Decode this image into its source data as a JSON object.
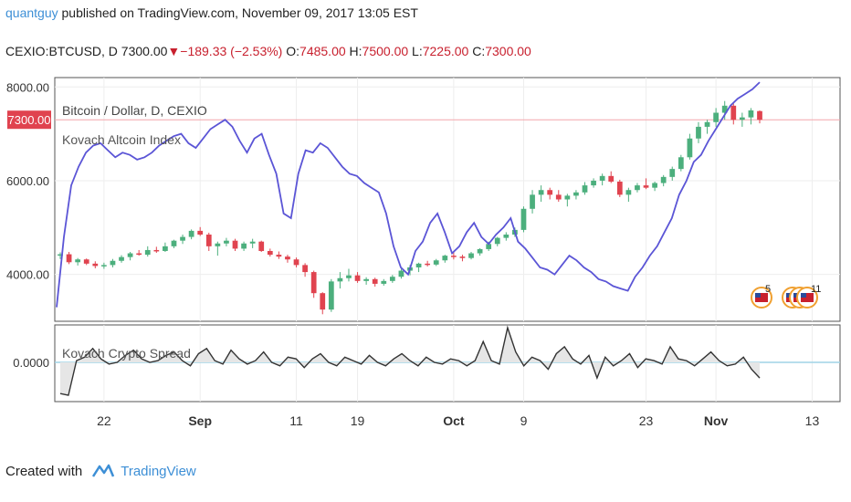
{
  "header": {
    "user": "quantguy",
    "published": "published on TradingView.com, November 09, 2017 13:05 EST",
    "symbol": "CEXIO:BTCUSD, D",
    "price": "7300.00",
    "change": "−189.33 (−2.53%)",
    "o_label": "O:",
    "o_value": "7485.00",
    "h_label": "H:",
    "h_value": "7500.00",
    "l_label": "L:",
    "l_value": "7225.00",
    "c_label": "C:",
    "c_value": "7300.00"
  },
  "colors": {
    "up": "#4caf7d",
    "down": "#e0434f",
    "line": "#5b55d6",
    "spread": "#333333",
    "priceline": "#f3a6ab",
    "zeroline": "#9fd3e6",
    "grid": "#eeeeee"
  },
  "chart_data": [
    {
      "type": "candlestick",
      "title": "Bitcoin / Dollar, D, CEXIO",
      "y_ticks": [
        "8000.00",
        "6000.00",
        "4000.00"
      ],
      "y_tick_values": [
        8000,
        6000,
        4000
      ],
      "ylim": [
        3000,
        8200
      ],
      "last_price_label": "7300.00",
      "last_price": 7300,
      "x_ticks": [
        "22",
        "Sep",
        "11",
        "19",
        "Oct",
        "9",
        "23",
        "Nov",
        "13"
      ],
      "x_tick_index": [
        5,
        16,
        27,
        34,
        45,
        53,
        67,
        75,
        86
      ],
      "ohlc": [
        [
          4400,
          4470,
          4330,
          4430
        ],
        [
          4430,
          4480,
          4220,
          4260
        ],
        [
          4260,
          4350,
          4190,
          4320
        ],
        [
          4320,
          4340,
          4200,
          4230
        ],
        [
          4230,
          4280,
          4130,
          4180
        ],
        [
          4180,
          4250,
          4120,
          4200
        ],
        [
          4200,
          4330,
          4150,
          4290
        ],
        [
          4290,
          4410,
          4250,
          4370
        ],
        [
          4370,
          4480,
          4300,
          4450
        ],
        [
          4450,
          4520,
          4400,
          4420
        ],
        [
          4420,
          4600,
          4380,
          4520
        ],
        [
          4520,
          4590,
          4460,
          4500
        ],
        [
          4500,
          4680,
          4480,
          4600
        ],
        [
          4600,
          4740,
          4560,
          4720
        ],
        [
          4720,
          4850,
          4650,
          4800
        ],
        [
          4800,
          4960,
          4750,
          4930
        ],
        [
          4930,
          5010,
          4820,
          4850
        ],
        [
          4850,
          4890,
          4500,
          4600
        ],
        [
          4600,
          4700,
          4400,
          4660
        ],
        [
          4660,
          4780,
          4600,
          4720
        ],
        [
          4720,
          4760,
          4500,
          4550
        ],
        [
          4550,
          4700,
          4500,
          4660
        ],
        [
          4660,
          4760,
          4560,
          4700
        ],
        [
          4700,
          4720,
          4480,
          4500
        ],
        [
          4500,
          4550,
          4380,
          4420
        ],
        [
          4420,
          4490,
          4330,
          4380
        ],
        [
          4380,
          4420,
          4250,
          4320
        ],
        [
          4320,
          4360,
          4150,
          4200
        ],
        [
          4200,
          4240,
          3950,
          4050
        ],
        [
          4050,
          4080,
          3500,
          3600
        ],
        [
          3600,
          3620,
          3150,
          3250
        ],
        [
          3250,
          3900,
          3200,
          3850
        ],
        [
          3850,
          4050,
          3700,
          3920
        ],
        [
          3920,
          4120,
          3850,
          3980
        ],
        [
          3980,
          4050,
          3820,
          3860
        ],
        [
          3860,
          3940,
          3780,
          3900
        ],
        [
          3900,
          3930,
          3740,
          3800
        ],
        [
          3800,
          3900,
          3760,
          3860
        ],
        [
          3860,
          3990,
          3820,
          3950
        ],
        [
          3950,
          4120,
          3910,
          4080
        ],
        [
          4080,
          4200,
          3980,
          4150
        ],
        [
          4150,
          4250,
          4050,
          4230
        ],
        [
          4230,
          4290,
          4170,
          4210
        ],
        [
          4210,
          4330,
          4180,
          4300
        ],
        [
          4300,
          4420,
          4250,
          4400
        ],
        [
          4400,
          4480,
          4320,
          4380
        ],
        [
          4380,
          4420,
          4280,
          4350
        ],
        [
          4350,
          4480,
          4320,
          4450
        ],
        [
          4450,
          4560,
          4400,
          4540
        ],
        [
          4540,
          4700,
          4500,
          4650
        ],
        [
          4650,
          4800,
          4600,
          4780
        ],
        [
          4780,
          4900,
          4720,
          4850
        ],
        [
          4850,
          5000,
          4800,
          4950
        ],
        [
          4950,
          5450,
          4900,
          5400
        ],
        [
          5400,
          5800,
          5300,
          5700
        ],
        [
          5700,
          5900,
          5550,
          5800
        ],
        [
          5800,
          5850,
          5600,
          5700
        ],
        [
          5700,
          5800,
          5550,
          5600
        ],
        [
          5600,
          5720,
          5450,
          5680
        ],
        [
          5680,
          5800,
          5600,
          5750
        ],
        [
          5750,
          5970,
          5700,
          5900
        ],
        [
          5900,
          6050,
          5850,
          6000
        ],
        [
          6000,
          6150,
          5900,
          6100
        ],
        [
          6100,
          6200,
          5950,
          5980
        ],
        [
          5980,
          6020,
          5650,
          5700
        ],
        [
          5700,
          5850,
          5550,
          5800
        ],
        [
          5800,
          5950,
          5750,
          5900
        ],
        [
          5900,
          6050,
          5820,
          5850
        ],
        [
          5850,
          5980,
          5780,
          5950
        ],
        [
          5950,
          6120,
          5880,
          6080
        ],
        [
          6080,
          6300,
          6000,
          6250
        ],
        [
          6250,
          6550,
          6200,
          6500
        ],
        [
          6500,
          7000,
          6450,
          6900
        ],
        [
          6900,
          7250,
          6800,
          7150
        ],
        [
          7150,
          7300,
          7000,
          7250
        ],
        [
          7250,
          7550,
          7150,
          7450
        ],
        [
          7450,
          7700,
          7300,
          7600
        ],
        [
          7600,
          7650,
          7200,
          7300
        ],
        [
          7300,
          7450,
          7150,
          7350
        ],
        [
          7350,
          7550,
          7200,
          7500
        ],
        [
          7485,
          7500,
          7225,
          7300
        ]
      ]
    },
    {
      "type": "line",
      "title": "Kovach Altcoin Index",
      "values": [
        3300,
        4800,
        5900,
        6300,
        6600,
        6750,
        6800,
        6650,
        6500,
        6600,
        6550,
        6450,
        6500,
        6600,
        6750,
        6850,
        6950,
        7000,
        6800,
        6700,
        6900,
        7100,
        7200,
        7300,
        7150,
        6850,
        6600,
        6900,
        7000,
        6550,
        6150,
        5300,
        5200,
        6150,
        6650,
        6600,
        6800,
        6700,
        6500,
        6300,
        6150,
        6100,
        5950,
        5850,
        5750,
        5300,
        4600,
        4150,
        4000,
        4500,
        4700,
        5100,
        5300,
        4900,
        4450,
        4600,
        4900,
        5100,
        4800,
        4650,
        4850,
        5000,
        5200,
        4700,
        4550,
        4350,
        4150,
        4100,
        4000,
        4200,
        4400,
        4300,
        4150,
        4050,
        3900,
        3850,
        3750,
        3700,
        3650,
        3950,
        4150,
        4400,
        4600,
        4900,
        5200,
        5700,
        6000,
        6400,
        6550,
        6850,
        7100,
        7350,
        7600,
        7750,
        7850,
        7950,
        8100
      ]
    },
    {
      "type": "area",
      "title": "Kovach Crypto Spread",
      "y_ticks": [
        "0.0000"
      ],
      "values": [
        -0.9,
        -0.95,
        0.05,
        0.15,
        0.4,
        0.1,
        -0.05,
        0.0,
        0.2,
        0.35,
        0.1,
        0.0,
        0.05,
        0.2,
        0.3,
        0.05,
        -0.1,
        0.25,
        0.4,
        0.05,
        -0.05,
        0.35,
        0.1,
        -0.05,
        0.05,
        0.3,
        0.0,
        -0.1,
        0.15,
        0.1,
        -0.15,
        0.1,
        0.25,
        0.0,
        -0.1,
        0.15,
        0.05,
        -0.05,
        0.2,
        0.0,
        -0.1,
        0.1,
        0.25,
        0.05,
        -0.1,
        0.15,
        0.0,
        -0.05,
        0.1,
        0.05,
        -0.1,
        0.05,
        0.6,
        0.05,
        -0.05,
        1.0,
        0.3,
        -0.1,
        0.15,
        0.05,
        -0.2,
        0.25,
        0.45,
        0.1,
        -0.05,
        0.2,
        -0.45,
        0.15,
        -0.1,
        0.05,
        0.25,
        -0.15,
        0.1,
        0.05,
        -0.05,
        0.45,
        0.1,
        0.05,
        -0.1,
        0.1,
        0.3,
        0.05,
        -0.1,
        -0.05,
        0.15,
        -0.2,
        -0.45
      ]
    }
  ],
  "badges": [
    {
      "icon": "us-flag-badge-icon",
      "count": "5"
    },
    {
      "icon": "us-flag-badge-icon",
      "count": "11"
    }
  ],
  "footer": {
    "created": "Created with",
    "brand": "TradingView",
    "icon": "tradingview-logo-icon"
  }
}
